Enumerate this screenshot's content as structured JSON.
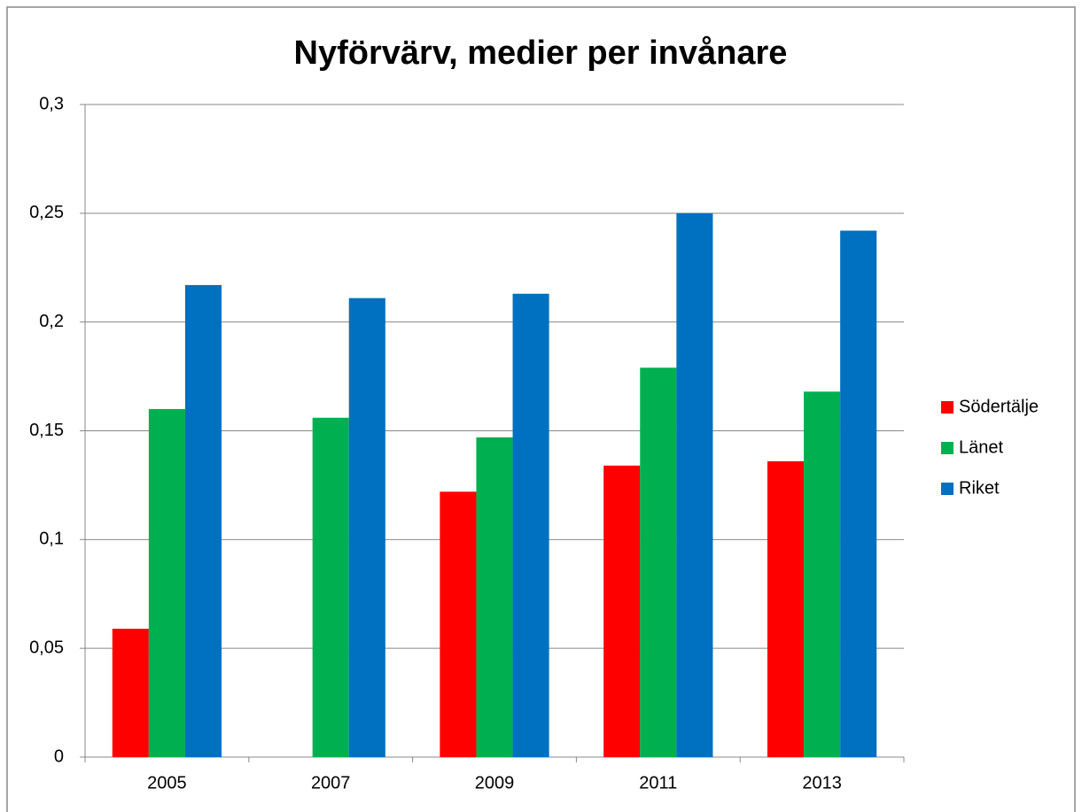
{
  "chart_data": {
    "type": "bar",
    "title": "Nyförvärv, medier per invånare",
    "categories": [
      "2005",
      "2007",
      "2009",
      "2011",
      "2013"
    ],
    "series": [
      {
        "name": "Södertälje",
        "color": "#ff0000",
        "values": [
          0.059,
          null,
          0.122,
          0.134,
          0.136
        ]
      },
      {
        "name": "Länet",
        "color": "#00b050",
        "values": [
          0.16,
          0.156,
          0.147,
          0.179,
          0.168
        ]
      },
      {
        "name": "Riket",
        "color": "#0070c0",
        "values": [
          0.217,
          0.211,
          0.213,
          0.25,
          0.242
        ]
      }
    ],
    "ylim": [
      0,
      0.3
    ],
    "yticks": [
      0,
      {
        "value": 0.05,
        "label": "0,05"
      },
      {
        "value": 0.1,
        "label": "0,1"
      },
      {
        "value": 0.15,
        "label": "0,15"
      },
      {
        "value": 0.2,
        "label": "0,2"
      },
      {
        "value": 0.25,
        "label": "0,25"
      },
      {
        "value": 0.3,
        "label": "0,3"
      }
    ],
    "grid": true,
    "legend": "right"
  }
}
